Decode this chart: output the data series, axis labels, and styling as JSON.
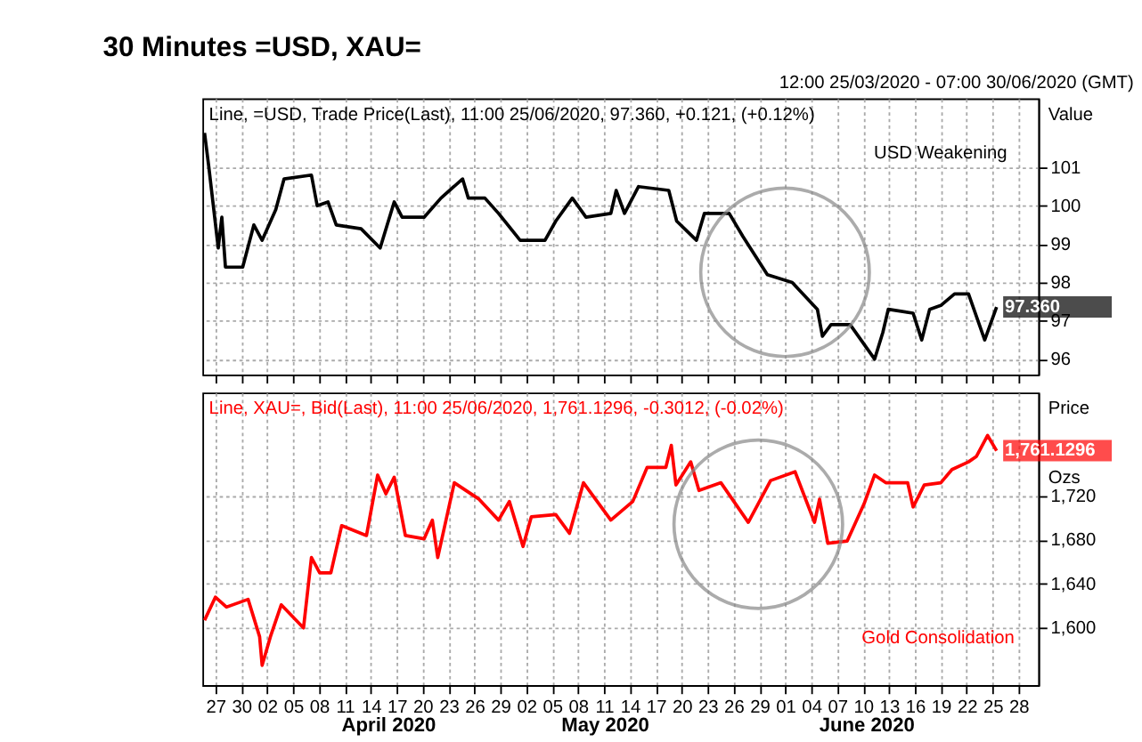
{
  "chart_data": [
    {
      "type": "line",
      "title": "30 Minutes =USD, XAU=",
      "subtitle": "12:00 25/03/2020 - 07:00 30/06/2020 (GMT)",
      "ylabel": "Value",
      "legend": "top left",
      "grid": true,
      "tick_labels": "y",
      "xlim": [
        "2020-03-25T12:00",
        "2020-06-30T07:00"
      ],
      "xticks": [
        {
          "value": "2020-03-27",
          "label": null
        },
        {
          "value": "2020-03-30",
          "label": null
        },
        {
          "value": "2020-04-02",
          "label": null
        },
        {
          "value": "2020-04-05",
          "label": null
        },
        {
          "value": "2020-04-08",
          "label": null
        },
        {
          "value": "2020-04-11",
          "label": null
        },
        {
          "value": "2020-04-14",
          "label": null
        },
        {
          "value": "2020-04-17",
          "label": null
        },
        {
          "value": "2020-04-20",
          "label": null
        },
        {
          "value": "2020-04-23",
          "label": null
        },
        {
          "value": "2020-04-26",
          "label": null
        },
        {
          "value": "2020-04-29",
          "label": null
        },
        {
          "value": "2020-05-02",
          "label": null
        },
        {
          "value": "2020-05-05",
          "label": null
        },
        {
          "value": "2020-05-08",
          "label": null
        },
        {
          "value": "2020-05-11",
          "label": null
        },
        {
          "value": "2020-05-14",
          "label": null
        },
        {
          "value": "2020-05-17",
          "label": null
        },
        {
          "value": "2020-05-20",
          "label": null
        },
        {
          "value": "2020-05-23",
          "label": null
        },
        {
          "value": "2020-05-26",
          "label": null
        },
        {
          "value": "2020-05-29",
          "label": null
        },
        {
          "value": "2020-06-01",
          "label": null
        },
        {
          "value": "2020-06-04",
          "label": null
        },
        {
          "value": "2020-06-07",
          "label": null
        },
        {
          "value": "2020-06-10",
          "label": null
        },
        {
          "value": "2020-06-13",
          "label": null
        },
        {
          "value": "2020-06-16",
          "label": null
        },
        {
          "value": "2020-06-19",
          "label": null
        },
        {
          "value": "2020-06-22",
          "label": null
        },
        {
          "value": "2020-06-25",
          "label": null
        },
        {
          "value": "2020-06-28",
          "label": null
        }
      ],
      "ylim": [
        95.6,
        102.8
      ],
      "yticks": [
        96,
        97,
        98,
        99,
        100,
        101
      ],
      "annotations": [
        "USD Weakening"
      ],
      "series": [
        {
          "name": "Line, =USD, Trade Price(Last), 11:00 25/06/2020, 97.360, +0.121, (+0.12%)",
          "color": "#000000",
          "x": [
            "2020-03-25T18:00",
            "2020-03-26T06:00",
            "2020-03-27T08:00",
            "2020-03-27T18:00",
            "2020-03-28T04:00",
            "2020-03-30T04:00",
            "2020-03-31T11:00",
            "2020-04-01T10:00",
            "2020-04-03T00:00",
            "2020-04-03T23:00",
            "2020-04-07T03:00",
            "2020-04-07T19:00",
            "2020-04-09T01:00",
            "2020-04-10T00:00",
            "2020-04-12T21:00",
            "2020-04-15T02:00",
            "2020-04-16T17:00",
            "2020-04-17T15:00",
            "2020-04-20T04:00",
            "2020-04-22T03:00",
            "2020-04-24T15:00",
            "2020-04-25T07:00",
            "2020-04-27T05:00",
            "2020-04-28T19:00",
            "2020-05-01T07:00",
            "2020-05-04T04:00",
            "2020-05-05T10:00",
            "2020-05-07T08:00",
            "2020-05-08T22:00",
            "2020-05-11T19:00",
            "2020-05-12T10:00",
            "2020-05-13T09:00",
            "2020-05-15T00:00",
            "2020-05-18T12:00",
            "2020-05-19T10:00",
            "2020-05-21T17:00",
            "2020-05-22T15:00",
            "2020-05-25T12:00",
            "2020-05-27T02:00",
            "2020-05-29T22:00",
            "2020-06-01T19:00",
            "2020-06-04T17:00",
            "2020-06-05T07:00",
            "2020-06-06T07:00",
            "2020-06-08T12:00",
            "2020-06-11T08:00",
            "2020-06-12T07:00",
            "2020-06-12T22:00",
            "2020-06-15T19:00",
            "2020-06-16T19:00",
            "2020-06-17T17:00",
            "2020-06-19T00:00",
            "2020-06-20T14:00",
            "2020-06-22T05:00",
            "2020-06-24T02:00",
            "2020-06-25T11:00"
          ],
          "values": [
            101.9,
            101.0,
            98.9,
            99.7,
            98.4,
            98.4,
            99.5,
            99.1,
            99.9,
            100.7,
            100.8,
            100.0,
            100.1,
            99.5,
            99.4,
            98.9,
            100.1,
            99.7,
            99.7,
            100.2,
            100.7,
            100.2,
            100.2,
            99.8,
            99.1,
            99.1,
            99.6,
            100.2,
            99.7,
            99.8,
            100.4,
            99.8,
            100.5,
            100.4,
            99.6,
            99.1,
            99.8,
            99.8,
            99.2,
            98.2,
            98.0,
            97.3,
            96.6,
            96.9,
            96.9,
            96.0,
            96.7,
            97.3,
            97.2,
            96.5,
            97.3,
            97.4,
            97.7,
            97.7,
            96.5,
            97.36
          ],
          "value_labels": [
            null,
            null,
            null,
            null,
            null,
            null,
            null,
            null,
            null,
            null,
            null,
            null,
            null,
            null,
            null,
            null,
            null,
            null,
            null,
            null,
            null,
            null,
            null,
            null,
            null,
            null,
            null,
            null,
            null,
            null,
            null,
            null,
            null,
            null,
            null,
            null,
            null,
            null,
            null,
            null,
            null,
            null,
            null,
            null,
            null,
            null,
            null,
            null,
            null,
            null,
            null,
            null,
            null,
            null,
            null,
            "97.360"
          ]
        }
      ]
    },
    {
      "type": "line",
      "ylabel": "Price Ozs",
      "legend": "top left",
      "grid": true,
      "xlim": [
        "2020-03-25T12:00",
        "2020-06-30T07:00"
      ],
      "xticks": [
        {
          "value": "2020-03-27",
          "label": "27"
        },
        {
          "value": "2020-03-30",
          "label": "30"
        },
        {
          "value": "2020-04-02",
          "label": "02"
        },
        {
          "value": "2020-04-05",
          "label": "05"
        },
        {
          "value": "2020-04-08",
          "label": "08"
        },
        {
          "value": "2020-04-11",
          "label": "11"
        },
        {
          "value": "2020-04-14",
          "label": "14"
        },
        {
          "value": "2020-04-17",
          "label": "17"
        },
        {
          "value": "2020-04-20",
          "label": "20"
        },
        {
          "value": "2020-04-23",
          "label": "23"
        },
        {
          "value": "2020-04-26",
          "label": "26"
        },
        {
          "value": "2020-04-29",
          "label": "29"
        },
        {
          "value": "2020-05-02",
          "label": "02"
        },
        {
          "value": "2020-05-05",
          "label": "05"
        },
        {
          "value": "2020-05-08",
          "label": "08"
        },
        {
          "value": "2020-05-11",
          "label": "11"
        },
        {
          "value": "2020-05-14",
          "label": "14"
        },
        {
          "value": "2020-05-17",
          "label": "17"
        },
        {
          "value": "2020-05-20",
          "label": "20"
        },
        {
          "value": "2020-05-23",
          "label": "23"
        },
        {
          "value": "2020-05-26",
          "label": "26"
        },
        {
          "value": "2020-05-29",
          "label": "29"
        },
        {
          "value": "2020-06-01",
          "label": "01"
        },
        {
          "value": "2020-06-04",
          "label": "04"
        },
        {
          "value": "2020-06-07",
          "label": "07"
        },
        {
          "value": "2020-06-10",
          "label": "10"
        },
        {
          "value": "2020-06-13",
          "label": "13"
        },
        {
          "value": "2020-06-16",
          "label": "16"
        },
        {
          "value": "2020-06-19",
          "label": "19"
        },
        {
          "value": "2020-06-22",
          "label": "22"
        },
        {
          "value": "2020-06-25",
          "label": "25"
        },
        {
          "value": "2020-06-28",
          "label": "28"
        }
      ],
      "ylim": [
        1548,
        1814
      ],
      "yticks": [
        {
          "value": 1600,
          "label": "1,600"
        },
        {
          "value": 1640,
          "label": "1,640"
        },
        {
          "value": 1680,
          "label": "1,680"
        },
        {
          "value": 1720,
          "label": "1,720"
        }
      ],
      "annotations": [
        "Gold Consolidation",
        "April 2020",
        "May 2020",
        "June 2020"
      ],
      "series": [
        {
          "name": "Line, XAU=, Bid(Last), 11:00 25/06/2020, 1,761.1296, -0.3012, (-0.02%)",
          "color": "#ff0000",
          "x": [
            "2020-03-25T18:00",
            "2020-03-27T00:00",
            "2020-03-28T07:00",
            "2020-03-30T19:00",
            "2020-04-01T03:00",
            "2020-04-01T10:00",
            "2020-04-02T09:00",
            "2020-04-03T15:00",
            "2020-04-06T05:00",
            "2020-04-07T03:00",
            "2020-04-08T02:00",
            "2020-04-09T09:00",
            "2020-04-10T15:00",
            "2020-04-13T12:00",
            "2020-04-14T19:00",
            "2020-04-15T18:00",
            "2020-04-16T17:00",
            "2020-04-18T00:00",
            "2020-04-20T04:00",
            "2020-04-21T03:00",
            "2020-04-21T18:00",
            "2020-04-23T16:00",
            "2020-04-26T13:00",
            "2020-04-28T19:00",
            "2020-04-30T01:00",
            "2020-05-01T15:00",
            "2020-05-02T14:00",
            "2020-05-05T10:00",
            "2020-05-07T00:00",
            "2020-05-08T15:00",
            "2020-05-11T19:00",
            "2020-05-14T08:00",
            "2020-05-16T00:00",
            "2020-05-18T04:00",
            "2020-05-18T19:00",
            "2020-05-19T08:00",
            "2020-05-21T01:00",
            "2020-05-22T00:00",
            "2020-05-24T13:00",
            "2020-05-27T17:00",
            "2020-05-30T07:00",
            "2020-06-02T03:00",
            "2020-06-04T09:00",
            "2020-06-04T23:00",
            "2020-06-05T22:00",
            "2020-06-08T04:00",
            "2020-06-10T03:00",
            "2020-06-11T08:00",
            "2020-06-12T15:00",
            "2020-06-15T04:00",
            "2020-06-15T19:00",
            "2020-06-17T02:00",
            "2020-06-19T00:00",
            "2020-06-20T07:00",
            "2020-06-22T05:00",
            "2020-06-23T03:00",
            "2020-06-24T10:00",
            "2020-06-25T11:00"
          ],
          "values": [
            1607,
            1628,
            1619,
            1626,
            1592,
            1566,
            1592,
            1621,
            1600,
            1664,
            1650,
            1650,
            1693,
            1684,
            1739,
            1722,
            1737,
            1684,
            1681,
            1698,
            1664,
            1732,
            1717,
            1698,
            1715,
            1674,
            1701,
            1703,
            1686,
            1732,
            1698,
            1715,
            1746,
            1746,
            1766,
            1730,
            1751,
            1725,
            1732,
            1696,
            1734,
            1742,
            1696,
            1717,
            1677,
            1679,
            1713,
            1739,
            1732,
            1732,
            1710,
            1730,
            1732,
            1744,
            1751,
            1756,
            1775,
            1761.1296
          ],
          "value_labels": [
            null,
            null,
            null,
            null,
            null,
            null,
            null,
            null,
            null,
            null,
            null,
            null,
            null,
            null,
            null,
            null,
            null,
            null,
            null,
            null,
            null,
            null,
            null,
            null,
            null,
            null,
            null,
            null,
            null,
            null,
            null,
            null,
            null,
            null,
            null,
            null,
            null,
            null,
            null,
            null,
            null,
            null,
            null,
            null,
            null,
            null,
            null,
            null,
            null,
            null,
            null,
            null,
            null,
            null,
            null,
            null,
            null,
            "1,761.1296"
          ]
        }
      ]
    }
  ]
}
